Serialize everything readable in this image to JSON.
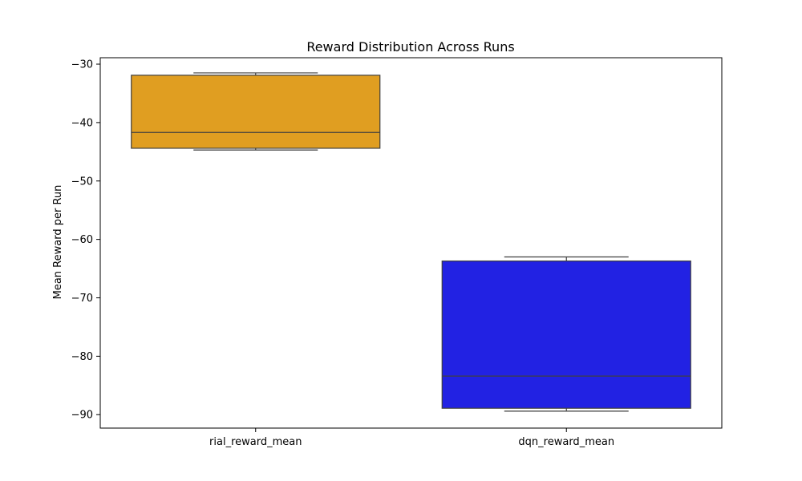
{
  "chart_data": {
    "type": "box",
    "title": "Reward Distribution Across Runs",
    "xlabel": "",
    "ylabel": "Mean Reward per Run",
    "categories": [
      "rial_reward_mean",
      "dqn_reward_mean"
    ],
    "ylim": [
      -92.3,
      -28.9
    ],
    "yticks": [
      -30,
      -40,
      -50,
      -60,
      -70,
      -80,
      -90
    ],
    "ytick_labels": [
      "−30",
      "−40",
      "−50",
      "−60",
      "−70",
      "−80",
      "−90"
    ],
    "grid": false,
    "boxes": [
      {
        "category": "rial_reward_mean",
        "whisker_low": -44.7,
        "q1": -44.4,
        "median": -41.7,
        "q3": -31.9,
        "whisker_high": -31.5,
        "color": "#e09e21"
      },
      {
        "category": "dqn_reward_mean",
        "whisker_low": -89.4,
        "q1": -88.9,
        "median": -83.4,
        "q3": -63.7,
        "whisker_high": -63.0,
        "color": "#2222e3"
      }
    ]
  }
}
